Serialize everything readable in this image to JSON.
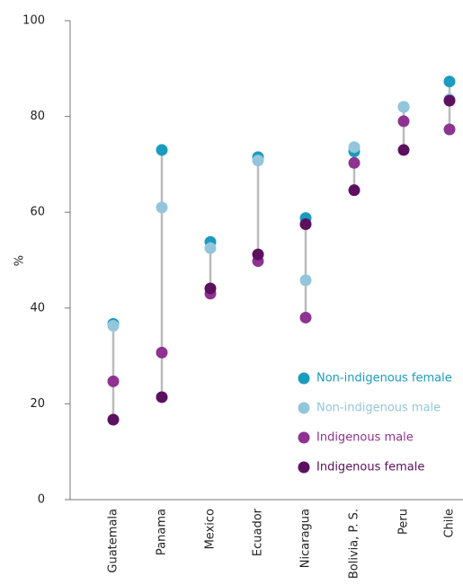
{
  "chart_data": {
    "type": "dot",
    "ylabel": "%",
    "categories": [
      "Guatemala",
      "Panama",
      "Mexico",
      "Ecuador",
      "Nicaragua",
      "Bolivia, P. S.",
      "Peru",
      "Chile"
    ],
    "series": [
      {
        "name": "Non-indigenous female",
        "color": "#1a9bbf",
        "values": [
          36.7,
          73,
          53.8,
          71.5,
          58.8,
          72.7,
          82,
          87.3
        ]
      },
      {
        "name": "Non-indigenous male",
        "color": "#93c6dc",
        "values": [
          36.3,
          61,
          52.5,
          70.8,
          45.8,
          73.6,
          82,
          83.6
        ]
      },
      {
        "name": "Indigenous male",
        "color": "#8e3391",
        "values": [
          24.7,
          30.7,
          43,
          49.8,
          38,
          70.3,
          79,
          77.3
        ]
      },
      {
        "name": "Indigenous female",
        "color": "#5c1060",
        "values": [
          16.7,
          21.4,
          44.1,
          51.2,
          57.5,
          64.6,
          73,
          83.3
        ]
      }
    ],
    "ylim": [
      0,
      100
    ],
    "yticks": [
      0,
      20,
      40,
      60,
      80,
      100
    ],
    "legend": "lower right"
  }
}
